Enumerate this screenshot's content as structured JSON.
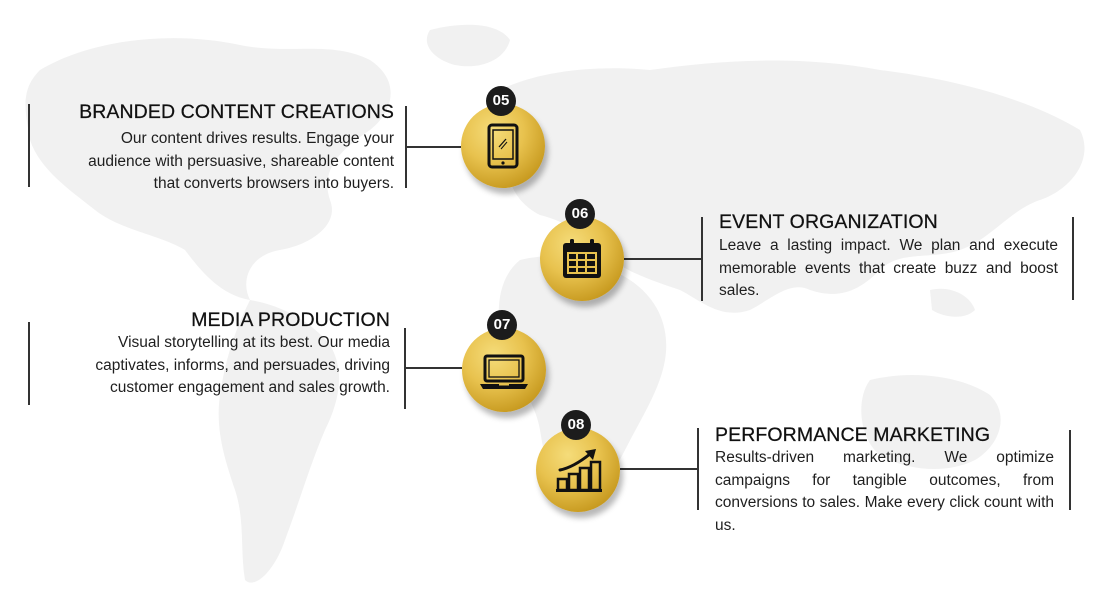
{
  "steps": [
    {
      "number": "05",
      "title": "BRANDED CONTENT CREATIONS",
      "desc_lines": [
        "Our content drives results. Engage your",
        "audience with persuasive, shareable content",
        "that converts browsers into buyers."
      ],
      "icon": "tablet-icon"
    },
    {
      "number": "06",
      "title": "EVENT ORGANIZATION",
      "description": "Leave a lasting impact. We plan and execute memorable events that create buzz and boost sales.",
      "icon": "calendar-icon"
    },
    {
      "number": "07",
      "title": "MEDIA PRODUCTION",
      "desc_lines": [
        "Visual storytelling at its best. Our media",
        "captivates, informs, and persuades, driving",
        "customer engagement and sales growth."
      ],
      "icon": "laptop-icon"
    },
    {
      "number": "08",
      "title": "PERFORMANCE MARKETING",
      "description": "Results-driven marketing. We optimize campaigns for tangible outcomes, from conversions to sales. Make every click count with us.",
      "icon": "growth-chart-icon"
    }
  ],
  "colors": {
    "gold": "#e8c24e",
    "badge": "#1c1c1c",
    "text": "#1a1a1a",
    "map": "#f1f1f1"
  }
}
